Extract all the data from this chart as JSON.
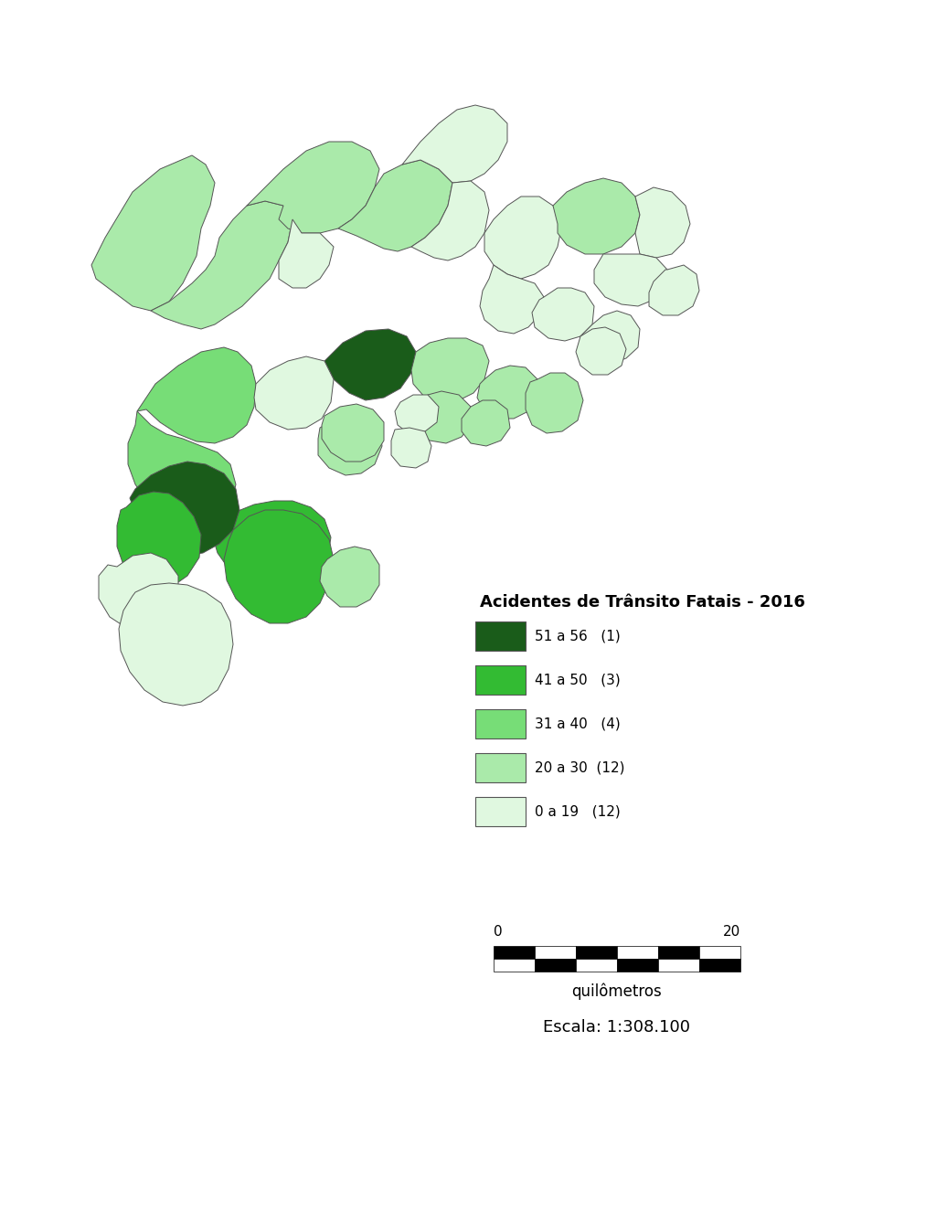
{
  "title": "Acidentes de Trânsito Fatais - 2016",
  "legend_entries": [
    {
      "label": "51 a 56   (1)",
      "color": "#1a5c1a"
    },
    {
      "label": "41 a 50   (3)",
      "color": "#33bb33"
    },
    {
      "label": "31 a 40   (4)",
      "color": "#77dd77"
    },
    {
      "label": "20 a 30  (12)",
      "color": "#aaeaaa"
    },
    {
      "label": "0 a 19   (12)",
      "color": "#e0f8e0"
    }
  ],
  "km_label": "quilômetros",
  "escala_label": "Escala: 1:308.100",
  "background_color": "#ffffff",
  "colors": {
    "c1": "#1a5c1a",
    "c2": "#33bb33",
    "c3": "#77dd77",
    "c4": "#aaeaaa",
    "c5": "#e0f8e0"
  },
  "figure_width": 10.24,
  "figure_height": 13.25,
  "dpi": 100
}
